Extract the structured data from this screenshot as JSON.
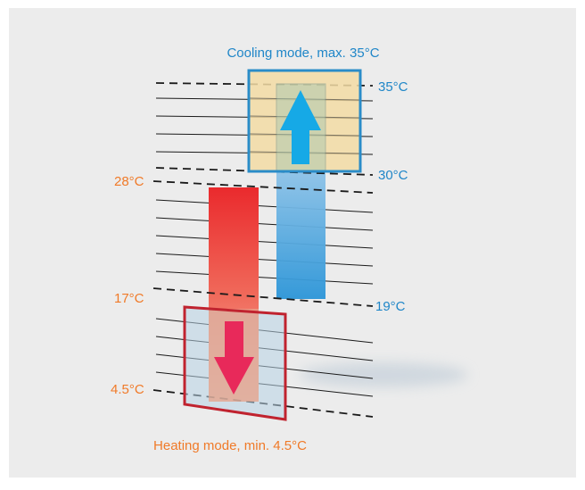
{
  "cooling_label": "Cooling mode, max. 35°C",
  "heating_label": "Heating mode, min. 4.5°C",
  "temps": {
    "cool_max": "35°C",
    "cool_top": "30°C",
    "cool_bottom": "19°C",
    "heat_top": "28°C",
    "heat_bottom_line": "17°C",
    "heat_min": "4.5°C"
  },
  "colors": {
    "cool_accent": "#1f86c8",
    "heat_accent": "#f07a28",
    "heat_box": "#c0232f",
    "cool_arrow": "#16a9e6",
    "heat_arrow": "#e8295a"
  }
}
